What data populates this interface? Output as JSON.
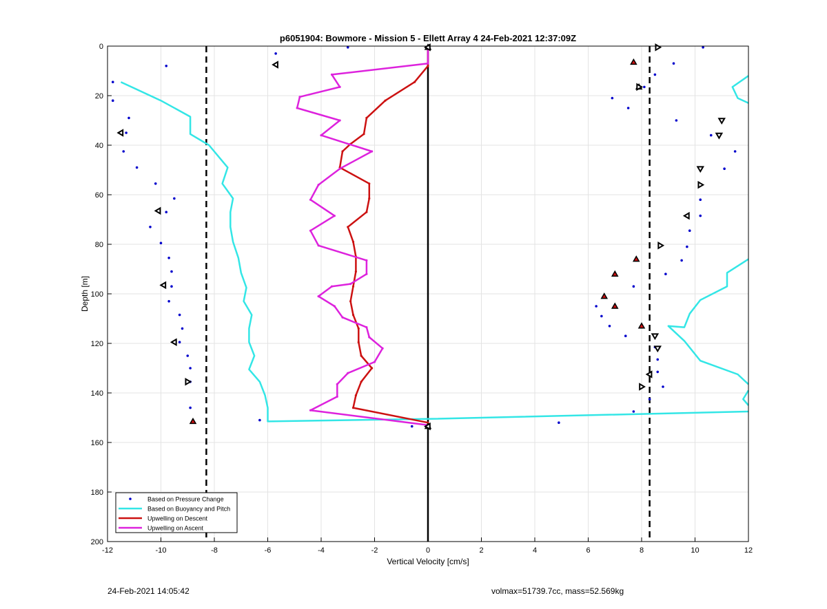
{
  "footer": {
    "timestamp": "24-Feb-2021 14:05:42",
    "info": "volmax=51739.7cc, mass=52.569kg"
  },
  "chart_data": {
    "type": "scatter",
    "title": "p6051904: Bowmore - Mission 5 - Ellett Array 4 24-Feb-2021 12:37:09Z",
    "xlabel": "Vertical Velocity [cm/s]",
    "ylabel": "Depth [m]",
    "xlim": [
      -12,
      12
    ],
    "ylim": [
      0,
      200
    ],
    "y_reversed": true,
    "xticks": [
      -12,
      -10,
      -8,
      -6,
      -4,
      -2,
      0,
      2,
      4,
      6,
      8,
      10,
      12
    ],
    "yticks": [
      0,
      20,
      40,
      60,
      80,
      100,
      120,
      140,
      160,
      180,
      200
    ],
    "grid": true,
    "legend_position": "bottom-left",
    "vertical_lines": [
      {
        "x": -8.3,
        "style": "dashed",
        "color": "#000000"
      },
      {
        "x": 8.3,
        "style": "dashed",
        "color": "#000000"
      },
      {
        "x": 0,
        "style": "solid",
        "color": "#000000"
      }
    ],
    "series": [
      {
        "name": "Based on Pressure Change",
        "kind": "points",
        "color": "#0000cc",
        "points": [
          [
            -11.8,
            14.5
          ],
          [
            -11.8,
            22
          ],
          [
            -9.8,
            8
          ],
          [
            -5.7,
            3
          ],
          [
            -3,
            0.5
          ],
          [
            -11.2,
            29
          ],
          [
            -11.3,
            35
          ],
          [
            -11.4,
            42.5
          ],
          [
            -10.9,
            49
          ],
          [
            -10.2,
            55.5
          ],
          [
            -9.5,
            61.5
          ],
          [
            -9.8,
            67
          ],
          [
            -10.4,
            73
          ],
          [
            -10,
            79.5
          ],
          [
            -9.7,
            85.5
          ],
          [
            -9.6,
            91
          ],
          [
            -9.6,
            97
          ],
          [
            -9.7,
            103
          ],
          [
            -9.3,
            108.5
          ],
          [
            -9.2,
            114
          ],
          [
            -9.3,
            119.5
          ],
          [
            -9,
            125
          ],
          [
            -8.9,
            130
          ],
          [
            -8.9,
            135.5
          ],
          [
            -8.9,
            146
          ],
          [
            -6.3,
            151
          ],
          [
            -0.6,
            153.5
          ],
          [
            4.9,
            152
          ],
          [
            10.3,
            0.5
          ],
          [
            9.2,
            7
          ],
          [
            8.5,
            11.5
          ],
          [
            8.1,
            16.5
          ],
          [
            6.9,
            21
          ],
          [
            7.5,
            25
          ],
          [
            9.3,
            30
          ],
          [
            10.6,
            36
          ],
          [
            11.5,
            42.5
          ],
          [
            11.1,
            49.5
          ],
          [
            10.2,
            56
          ],
          [
            10.2,
            62
          ],
          [
            10.2,
            68.5
          ],
          [
            9.8,
            74.5
          ],
          [
            9.7,
            81
          ],
          [
            9.5,
            86.5
          ],
          [
            8.9,
            92
          ],
          [
            7.7,
            97
          ],
          [
            6.3,
            105
          ],
          [
            6.5,
            109
          ],
          [
            6.8,
            113
          ],
          [
            7.4,
            117
          ],
          [
            8.5,
            121.5
          ],
          [
            8.6,
            126.5
          ],
          [
            8.6,
            131.5
          ],
          [
            8.8,
            137.5
          ],
          [
            8.3,
            142.5
          ],
          [
            7.7,
            147.5
          ]
        ]
      },
      {
        "name": "Based on Buoyancy and Pitch",
        "kind": "line",
        "color": "#33e6e6",
        "segments": [
          [
            [
              -11.5,
              14.5
            ],
            [
              -10,
              22
            ],
            [
              -8.9,
              28.5
            ],
            [
              -8.9,
              35.5
            ],
            [
              -8.2,
              40
            ],
            [
              -7.5,
              49
            ],
            [
              -7.7,
              55.5
            ],
            [
              -7.3,
              61.5
            ],
            [
              -7.4,
              67
            ],
            [
              -7.4,
              73
            ],
            [
              -7.3,
              79
            ],
            [
              -7.1,
              85.5
            ],
            [
              -7,
              91.5
            ],
            [
              -6.8,
              97.5
            ],
            [
              -6.9,
              103
            ],
            [
              -6.6,
              108.5
            ],
            [
              -6.7,
              114
            ],
            [
              -6.7,
              119.5
            ],
            [
              -6.5,
              125
            ],
            [
              -6.7,
              130.5
            ],
            [
              -6.3,
              135.5
            ],
            [
              -6.1,
              141
            ],
            [
              -6,
              146
            ],
            [
              -6,
              151.5
            ],
            [
              0,
              150.5
            ],
            [
              12,
              147.5
            ]
          ],
          [
            [
              12,
              12
            ],
            [
              11.4,
              16.5
            ],
            [
              11.6,
              21
            ],
            [
              12,
              23
            ]
          ],
          [
            [
              12,
              86
            ],
            [
              11.2,
              91.5
            ],
            [
              11.2,
              97
            ],
            [
              10.2,
              102.5
            ],
            [
              9.8,
              108
            ],
            [
              9.6,
              113.5
            ],
            [
              9,
              113
            ],
            [
              9.6,
              119
            ],
            [
              10.2,
              127
            ],
            [
              11.6,
              132.5
            ],
            [
              12,
              136.5
            ]
          ],
          [
            [
              12,
              139
            ],
            [
              11.8,
              142.5
            ],
            [
              12,
              145
            ]
          ]
        ]
      },
      {
        "name": "Upwelling on Descent",
        "kind": "line",
        "color": "#cc1111",
        "points": [
          [
            0,
            0.5
          ],
          [
            0,
            8
          ],
          [
            -0.5,
            14.5
          ],
          [
            -1.6,
            22
          ],
          [
            -2.3,
            29
          ],
          [
            -2.4,
            35.5
          ],
          [
            -2.9,
            39.5
          ],
          [
            -3.2,
            42.5
          ],
          [
            -3.3,
            49
          ],
          [
            -2.2,
            55.5
          ],
          [
            -2.2,
            61.5
          ],
          [
            -2.3,
            67
          ],
          [
            -3,
            73
          ],
          [
            -2.8,
            79
          ],
          [
            -2.7,
            85
          ],
          [
            -2.7,
            91
          ],
          [
            -2.8,
            97
          ],
          [
            -2.9,
            103
          ],
          [
            -2.8,
            108.5
          ],
          [
            -2.6,
            114
          ],
          [
            -2.6,
            119.5
          ],
          [
            -2.5,
            125
          ],
          [
            -2.1,
            130
          ],
          [
            -2.5,
            135.5
          ],
          [
            -2.7,
            141
          ],
          [
            -2.8,
            146
          ],
          [
            0,
            152
          ],
          [
            0,
            153.5
          ]
        ]
      },
      {
        "name": "Upwelling on Ascent",
        "kind": "line",
        "color": "#dd22dd",
        "points": [
          [
            0,
            0.5
          ],
          [
            0,
            7
          ],
          [
            -3.6,
            11.5
          ],
          [
            -3.3,
            16.5
          ],
          [
            -4.8,
            20.5
          ],
          [
            -4.9,
            25
          ],
          [
            -3.3,
            30
          ],
          [
            -4,
            36
          ],
          [
            -2.1,
            42.5
          ],
          [
            -3.3,
            49.5
          ],
          [
            -4.1,
            56
          ],
          [
            -4.4,
            62
          ],
          [
            -3.5,
            68.5
          ],
          [
            -4.4,
            74.5
          ],
          [
            -4.1,
            80.5
          ],
          [
            -2.3,
            86.5
          ],
          [
            -2.3,
            92
          ],
          [
            -2.9,
            96
          ],
          [
            -3.6,
            97
          ],
          [
            -4.1,
            101
          ],
          [
            -3.5,
            105
          ],
          [
            -3.2,
            109.5
          ],
          [
            -2.3,
            113.5
          ],
          [
            -2.2,
            117.5
          ],
          [
            -1.7,
            122
          ],
          [
            -2,
            127.5
          ],
          [
            -3,
            132
          ],
          [
            -3.4,
            136.5
          ],
          [
            -3.4,
            141.5
          ],
          [
            -4.4,
            147
          ],
          [
            0,
            153
          ]
        ]
      }
    ],
    "marker_series": [
      {
        "kind": "triangle-down-filled",
        "color": "#cc1111",
        "points": [
          [
            0,
            0.5
          ],
          [
            7.7,
            6.5
          ],
          [
            7.9,
            16.5
          ],
          [
            7.8,
            86
          ],
          [
            7,
            92
          ],
          [
            6.6,
            101
          ],
          [
            7,
            105
          ],
          [
            8,
            113
          ],
          [
            -8.8,
            151.5
          ],
          [
            0,
            153.5
          ]
        ]
      },
      {
        "kind": "triangle-left-open",
        "color": "#000000",
        "points": [
          [
            0,
            0.5
          ],
          [
            -5.7,
            7.5
          ],
          [
            -11.5,
            35
          ],
          [
            -10.1,
            66.5
          ],
          [
            -9.9,
            96.5
          ],
          [
            -9.5,
            119.5
          ],
          [
            9.7,
            68.5
          ],
          [
            8.3,
            132.5
          ],
          [
            0,
            153.5
          ]
        ]
      },
      {
        "kind": "triangle-right-open",
        "color": "#000000",
        "points": [
          [
            8.6,
            0.5
          ],
          [
            7.9,
            16.5
          ],
          [
            -9,
            135.5
          ],
          [
            10.2,
            56
          ],
          [
            8.7,
            80.5
          ],
          [
            8,
            137.5
          ]
        ]
      },
      {
        "kind": "triangle-down-open",
        "color": "#000000",
        "points": [
          [
            11,
            30
          ],
          [
            10.9,
            36
          ],
          [
            10.2,
            49.5
          ],
          [
            8.5,
            117
          ],
          [
            8.6,
            122
          ]
        ]
      }
    ]
  }
}
